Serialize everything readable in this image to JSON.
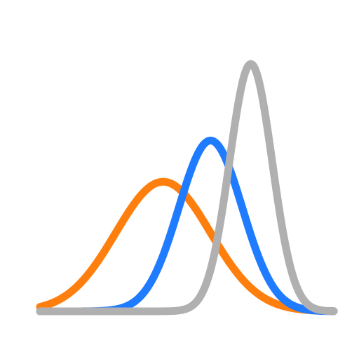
{
  "logo": {
    "name": "three-bell-curves-logo",
    "curves": [
      {
        "id": "orange",
        "color": "#FF7F0E",
        "mean": 0.0,
        "sd": 1.0,
        "peak": 0.44
      },
      {
        "id": "blue",
        "color": "#1F7BFF",
        "mean": 1.0,
        "sd": 0.67,
        "peak": 0.58
      },
      {
        "id": "gray",
        "color": "#B0B0B0",
        "mean": 1.85,
        "sd": 0.45,
        "peak": 0.84
      }
    ]
  }
}
